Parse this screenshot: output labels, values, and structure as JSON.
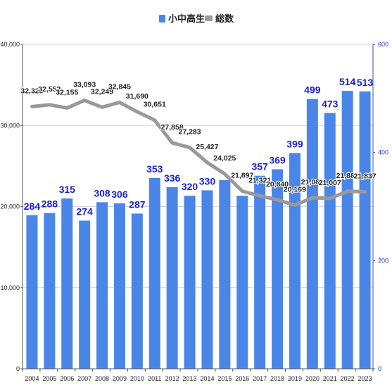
{
  "chart_data": {
    "type": "bar",
    "categories": [
      "2004",
      "2005",
      "2006",
      "2007",
      "2008",
      "2009",
      "2010",
      "2011",
      "2012",
      "2013",
      "2014",
      "2015",
      "2016",
      "2017",
      "2018",
      "2019",
      "2020",
      "2021",
      "2022",
      "2023"
    ],
    "series": [
      {
        "name": "小中高生",
        "type": "bar",
        "axis": "right",
        "color": "#4a86e8",
        "values": [
          284,
          288,
          315,
          274,
          308,
          306,
          287,
          353,
          336,
          320,
          330,
          349,
          320,
          357,
          369,
          399,
          499,
          473,
          514,
          513
        ],
        "labels": [
          "284",
          "288",
          "315",
          "274",
          "308",
          "306",
          "287",
          "353",
          "336",
          "320",
          "330",
          "",
          "",
          "357",
          "369",
          "399",
          "499",
          "473",
          "514",
          "513"
        ]
      },
      {
        "name": "総数",
        "type": "line",
        "axis": "left",
        "color": "#999999",
        "values": [
          32325,
          32552,
          32155,
          33093,
          32249,
          32845,
          31690,
          30651,
          27858,
          27283,
          25427,
          24025,
          21897,
          21321,
          20840,
          20169,
          21081,
          21007,
          21881,
          21837
        ],
        "labels": [
          "32,325",
          "32,552",
          "32,155",
          "33,093",
          "32,249",
          "32,845",
          "31,690",
          "30,651",
          "27,858",
          "27,283",
          "25,427",
          "24,025",
          "21,897",
          "21,321",
          "20,840",
          "20,169",
          "21,081",
          "21,007",
          "21,881",
          "21,837"
        ]
      }
    ],
    "y_left": {
      "lim": [
        0,
        40000
      ],
      "ticks": [
        "0",
        "10,000",
        "20,000",
        "30,000",
        "40,000"
      ]
    },
    "y_right": {
      "lim": [
        0,
        600
      ],
      "ticks": [
        "0",
        "200",
        "400",
        "600"
      ]
    },
    "grid": true,
    "legend_position": "top-center"
  }
}
